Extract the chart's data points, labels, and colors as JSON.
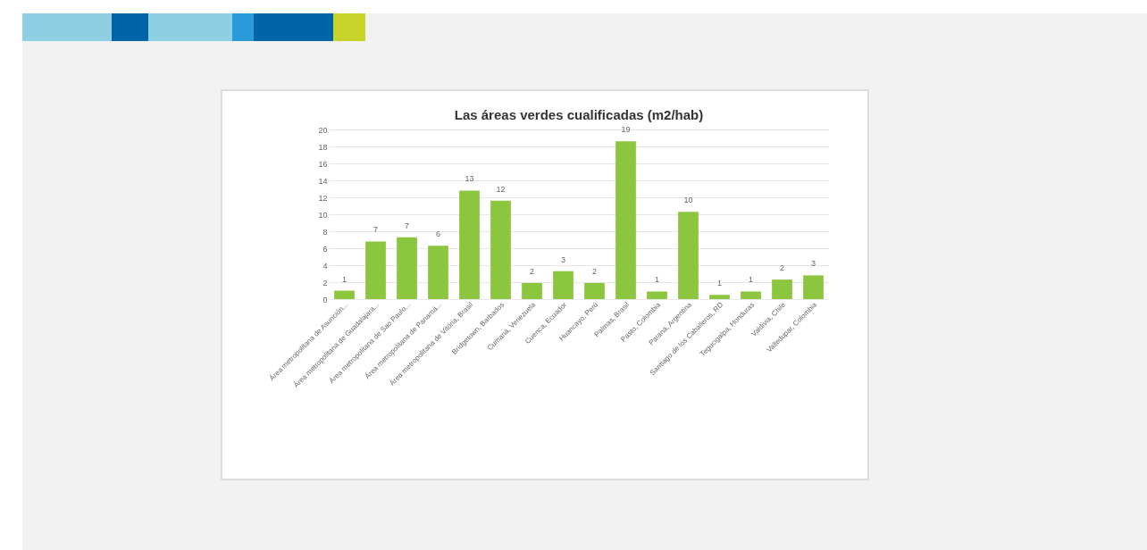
{
  "chart_data": {
    "type": "bar",
    "title": "Las áreas verdes cualificadas (m2/hab)",
    "categories": [
      "Área metropolitana de Asunción...",
      "Área metropolitana de Guadalajara...",
      "Área metropolitana de Sao Paulo...",
      "Área metropolitana de Panamá...",
      "Área metropolitana de Vitória, Brasil",
      "Bridgetown, Barbados",
      "Cumaná, Venezuela",
      "Cuenca, Ecuador",
      "Huancayo, Perú",
      "Palmas, Brasil",
      "Pasto, Colombia",
      "Paraná, Argentina",
      "Santiago de los Caballeros, RD",
      "Tegucigalpa, Honduras",
      "Valdivia, Chile",
      "Valledupar, Colombia"
    ],
    "values": [
      1,
      6.8,
      7.3,
      6.3,
      12.8,
      11.6,
      1.9,
      3.3,
      1.9,
      18.6,
      0.9,
      10.3,
      0.5,
      0.9,
      2.3,
      2.8
    ],
    "value_labels": [
      "1",
      "7",
      "7",
      "6",
      "13",
      "12",
      "2",
      "3",
      "2",
      "19",
      "1",
      "10",
      "1",
      "1",
      "2",
      "3"
    ],
    "color": "#8cc63f",
    "ylim": [
      0,
      20
    ],
    "yticks": [
      0,
      2,
      4,
      6,
      8,
      10,
      12,
      14,
      16,
      18,
      20
    ],
    "grid": "y"
  }
}
